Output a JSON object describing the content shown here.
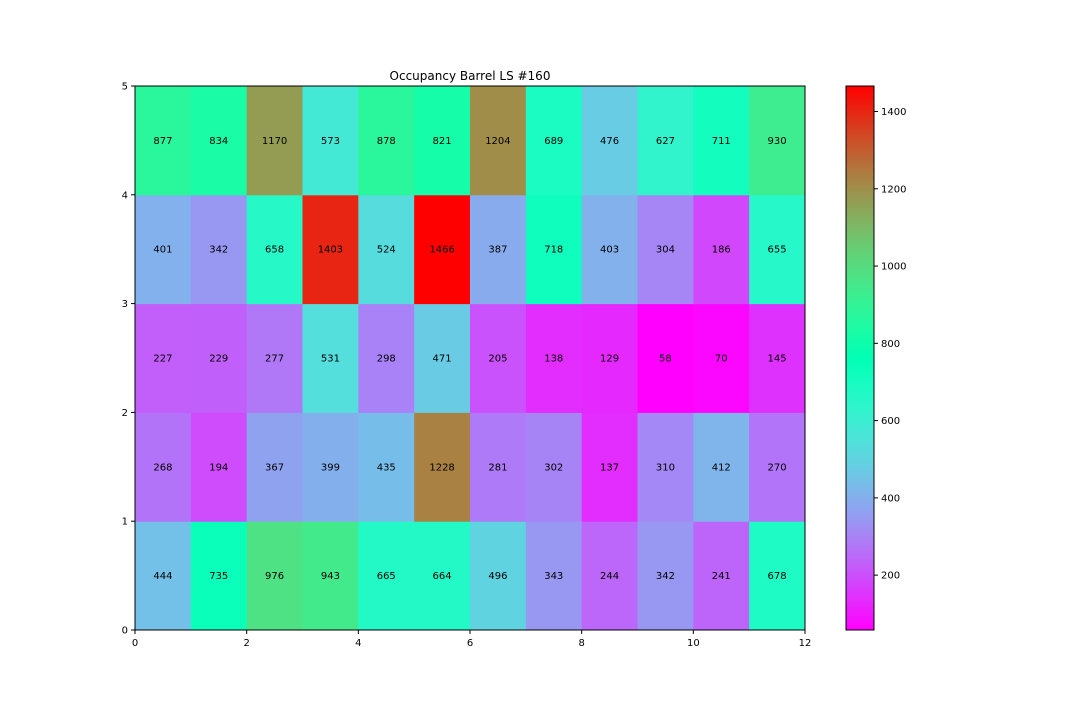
{
  "chart_data": {
    "type": "heatmap",
    "title": "Occupancy Barrel LS #160",
    "xlabel": "",
    "ylabel": "",
    "xlim": [
      0,
      12
    ],
    "ylim": [
      0,
      5
    ],
    "x_ticks": [
      0,
      2,
      4,
      6,
      8,
      10,
      12
    ],
    "y_ticks": [
      0,
      1,
      2,
      3,
      4,
      5
    ],
    "colormap": "rainbow",
    "colorbar": {
      "min": 58,
      "max": 1466,
      "ticks": [
        200,
        400,
        600,
        800,
        1000,
        1200,
        1400
      ],
      "position": "right"
    },
    "grid": false,
    "rows_bottom_to_top": [
      [
        444,
        735,
        976,
        943,
        665,
        664,
        496,
        343,
        244,
        342,
        241,
        678
      ],
      [
        268,
        194,
        367,
        399,
        435,
        1228,
        281,
        302,
        137,
        310,
        412,
        270
      ],
      [
        227,
        229,
        277,
        531,
        298,
        471,
        205,
        138,
        129,
        58,
        70,
        145
      ],
      [
        401,
        342,
        658,
        1403,
        524,
        1466,
        387,
        718,
        403,
        304,
        186,
        655
      ],
      [
        877,
        834,
        1170,
        573,
        878,
        821,
        1204,
        689,
        476,
        627,
        711,
        930
      ]
    ]
  }
}
